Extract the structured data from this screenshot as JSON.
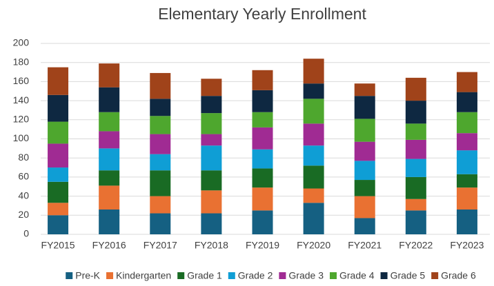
{
  "chart_data": {
    "type": "stacked_bar",
    "title": "Elementary Yearly Enrollment",
    "categories": [
      "FY2015",
      "FY2016",
      "FY2017",
      "FY2018",
      "FY2019",
      "FY2020",
      "FY2021",
      "FY2022",
      "FY2023"
    ],
    "series": [
      {
        "name": "Pre-K",
        "color": "#156082",
        "values": [
          20,
          26,
          22,
          22,
          25,
          33,
          17,
          25,
          26
        ]
      },
      {
        "name": "Kindergarten",
        "color": "#e97132",
        "values": [
          13,
          25,
          18,
          24,
          24,
          15,
          23,
          12,
          23
        ]
      },
      {
        "name": "Grade 1",
        "color": "#196b24",
        "values": [
          22,
          16,
          27,
          21,
          20,
          24,
          17,
          23,
          14
        ]
      },
      {
        "name": "Grade 2",
        "color": "#0f9ed5",
        "values": [
          15,
          23,
          17,
          26,
          20,
          21,
          20,
          19,
          25
        ]
      },
      {
        "name": "Grade 3",
        "color": "#a02b93",
        "values": [
          25,
          18,
          21,
          12,
          23,
          23,
          20,
          20,
          18
        ]
      },
      {
        "name": "Grade 4",
        "color": "#4ea72e",
        "values": [
          23,
          20,
          19,
          22,
          16,
          26,
          24,
          17,
          22
        ]
      },
      {
        "name": "Grade 5",
        "color": "#0e2841",
        "values": [
          28,
          26,
          18,
          18,
          23,
          16,
          24,
          24,
          21
        ]
      },
      {
        "name": "Grade 6",
        "color": "#a0431a",
        "values": [
          29,
          25,
          27,
          18,
          21,
          26,
          13,
          24,
          21
        ]
      }
    ],
    "ylim": [
      0,
      200
    ],
    "yticks": [
      0,
      20,
      40,
      60,
      80,
      100,
      120,
      140,
      160,
      180,
      200
    ],
    "grid": true,
    "legend": "bottom"
  }
}
